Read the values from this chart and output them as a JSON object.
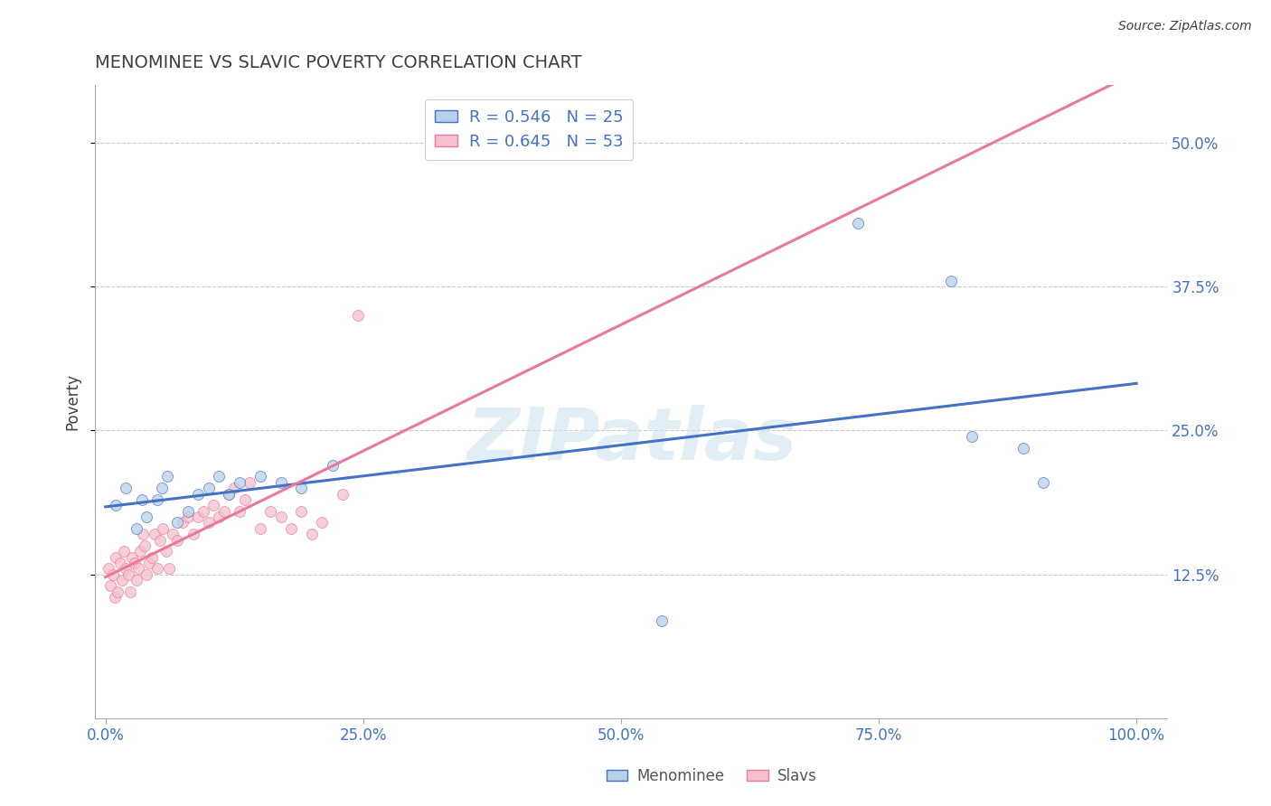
{
  "title": "MENOMINEE VS SLAVIC POVERTY CORRELATION CHART",
  "source": "Source: ZipAtlas.com",
  "xlabel_ticks": [
    "0.0%",
    "25.0%",
    "50.0%",
    "75.0%",
    "100.0%"
  ],
  "xlabel_values": [
    0,
    25,
    50,
    75,
    100
  ],
  "ylabel": "Poverty",
  "ylabel_ticks": [
    "12.5%",
    "25.0%",
    "37.5%",
    "50.0%"
  ],
  "ylabel_values": [
    12.5,
    25.0,
    37.5,
    50.0
  ],
  "ymin": 0.0,
  "ymax": 55.0,
  "xmin": -1.0,
  "xmax": 103.0,
  "menominee_R": 0.546,
  "menominee_N": 25,
  "slavic_R": 0.645,
  "slavic_N": 53,
  "menominee_color": "#b8d0e8",
  "menominee_line_color": "#4472c4",
  "slavic_color": "#f5c0cc",
  "slavic_line_color": "#e8799a",
  "legend_R_color": "#4472c4",
  "menominee_x": [
    1.0,
    2.0,
    3.0,
    3.5,
    4.0,
    5.0,
    5.5,
    6.0,
    7.0,
    8.0,
    9.0,
    10.0,
    11.0,
    12.0,
    13.0,
    15.0,
    17.0,
    19.0,
    22.0,
    54.0,
    73.0,
    82.0,
    84.0,
    89.0,
    91.0
  ],
  "menominee_y": [
    18.5,
    20.0,
    16.5,
    19.0,
    17.5,
    19.0,
    20.0,
    21.0,
    17.0,
    18.0,
    19.5,
    20.0,
    21.0,
    19.5,
    20.5,
    21.0,
    20.5,
    20.0,
    22.0,
    8.5,
    43.0,
    38.0,
    24.5,
    23.5,
    20.5
  ],
  "slavic_x": [
    0.3,
    0.5,
    0.7,
    0.9,
    1.0,
    1.2,
    1.4,
    1.6,
    1.8,
    2.0,
    2.2,
    2.4,
    2.6,
    2.8,
    3.0,
    3.2,
    3.4,
    3.6,
    3.8,
    4.0,
    4.2,
    4.5,
    4.8,
    5.0,
    5.3,
    5.6,
    5.9,
    6.2,
    6.5,
    7.0,
    7.5,
    8.0,
    8.5,
    9.0,
    9.5,
    10.0,
    10.5,
    11.0,
    11.5,
    12.0,
    12.5,
    13.0,
    13.5,
    14.0,
    15.0,
    16.0,
    17.0,
    18.0,
    19.0,
    20.0,
    21.0,
    23.0,
    24.5
  ],
  "slavic_y": [
    13.0,
    11.5,
    12.5,
    10.5,
    14.0,
    11.0,
    13.5,
    12.0,
    14.5,
    13.0,
    12.5,
    11.0,
    14.0,
    13.5,
    12.0,
    13.0,
    14.5,
    16.0,
    15.0,
    12.5,
    13.5,
    14.0,
    16.0,
    13.0,
    15.5,
    16.5,
    14.5,
    13.0,
    16.0,
    15.5,
    17.0,
    17.5,
    16.0,
    17.5,
    18.0,
    17.0,
    18.5,
    17.5,
    18.0,
    19.5,
    20.0,
    18.0,
    19.0,
    20.5,
    16.5,
    18.0,
    17.5,
    16.5,
    18.0,
    16.0,
    17.0,
    19.5,
    35.0
  ],
  "watermark_text": "ZIPatlas",
  "watermark_color": "#d0e4f0",
  "watermark_alpha": 0.6,
  "background_color": "#ffffff",
  "grid_color": "#cccccc",
  "title_color": "#404040",
  "axis_tick_color": "#4472c4",
  "source_color": "#404040",
  "marker_size": 75,
  "marker_alpha": 0.75,
  "line_width": 2.2
}
